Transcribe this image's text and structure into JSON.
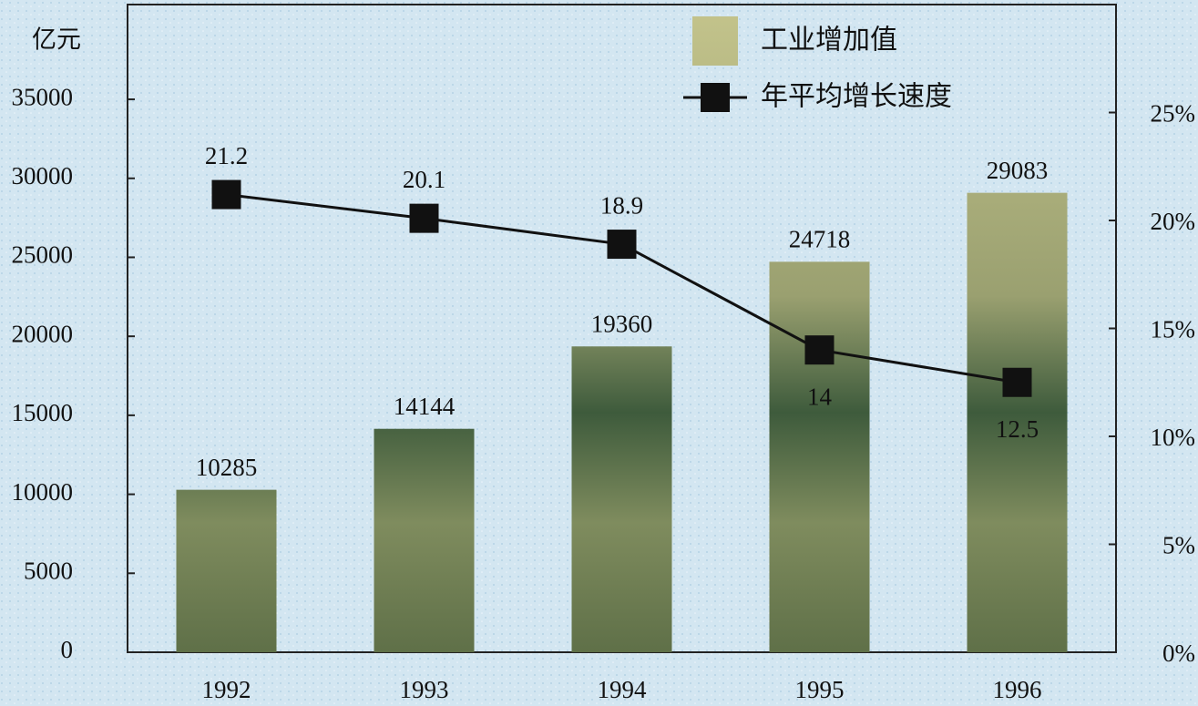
{
  "chart_data": {
    "type": "bar_line",
    "y_label": "亿元",
    "categories": [
      "1992",
      "1993",
      "1994",
      "1995",
      "1996"
    ],
    "series": [
      {
        "name": "工业增加值",
        "type": "bar",
        "color": "#3e5b3c",
        "values": [
          10285,
          14144,
          19360,
          24718,
          29083
        ]
      },
      {
        "name": "年平均增长速度",
        "type": "line",
        "axis": "y2",
        "color": "#111111",
        "values": [
          21.2,
          20.1,
          18.9,
          14,
          12.5
        ]
      }
    ],
    "ylim": [
      0,
      41000
    ],
    "yticks": [
      0,
      5000,
      10000,
      15000,
      20000,
      25000,
      30000,
      35000
    ],
    "y2lim": [
      0,
      30
    ],
    "y2ticks": [
      {
        "value": 0,
        "label": "0%"
      },
      {
        "value": 5,
        "label": "5%"
      },
      {
        "value": 10,
        "label": "10%"
      },
      {
        "value": 15,
        "label": "15%"
      },
      {
        "value": 20,
        "label": "20%"
      },
      {
        "value": 25,
        "label": "25%"
      }
    ],
    "legend": "top-right"
  }
}
